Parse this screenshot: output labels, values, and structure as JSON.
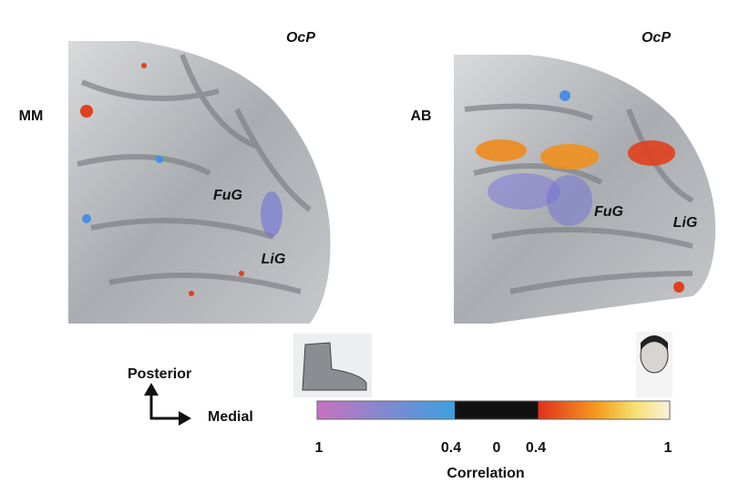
{
  "panels": [
    {
      "label": "MM",
      "region": "OcP",
      "areas": [
        "FuG",
        "LiG"
      ]
    },
    {
      "label": "AB",
      "region": "OcP",
      "areas": [
        "FuG",
        "LiG"
      ]
    }
  ],
  "orientation": {
    "up": "Posterior",
    "right": "Medial"
  },
  "colorbar": {
    "ticks": [
      "1",
      "0.4",
      "0",
      "0.4",
      "1"
    ],
    "label": "Correlation"
  }
}
